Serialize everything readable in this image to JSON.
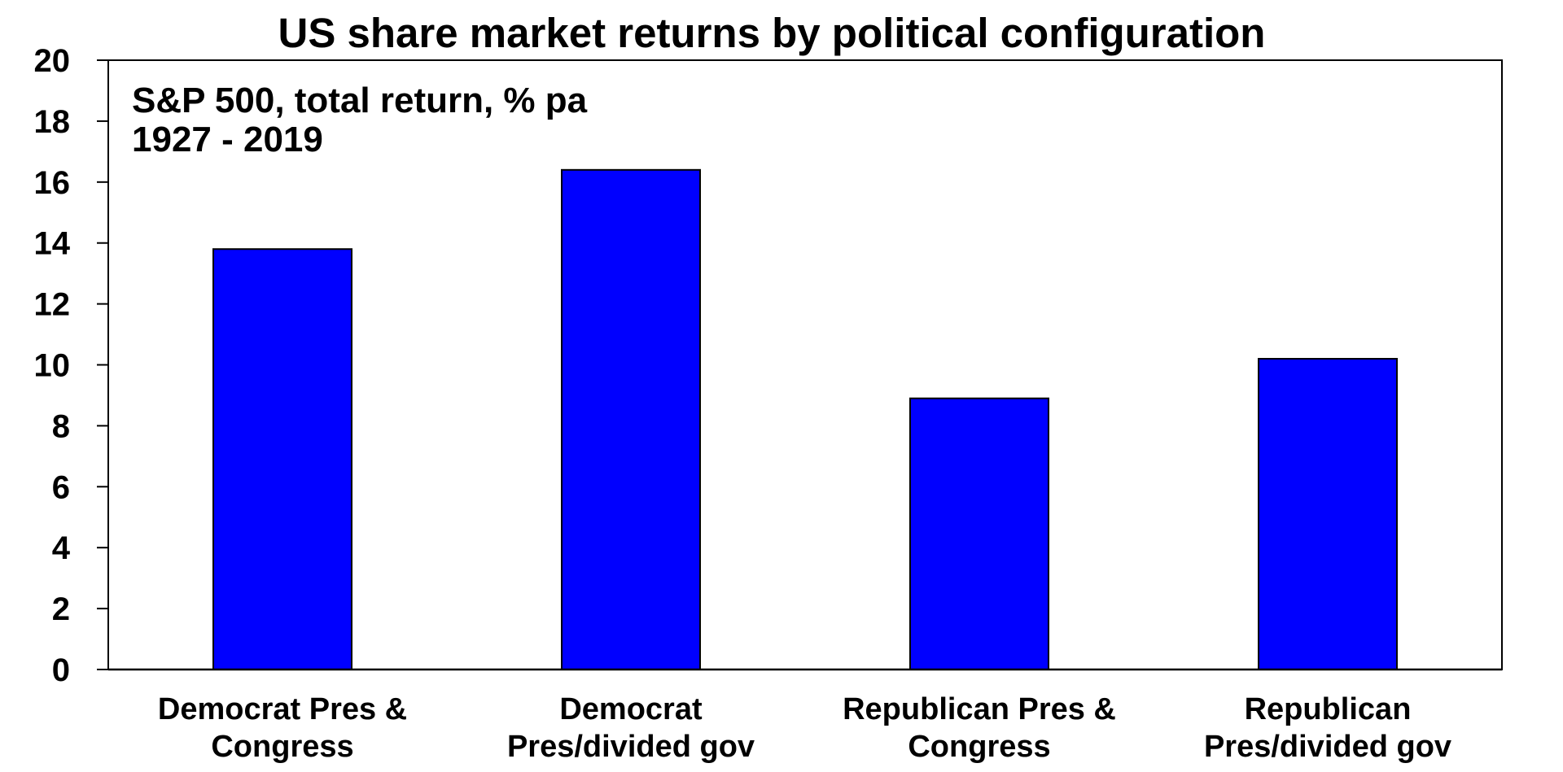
{
  "chart_data": {
    "type": "bar",
    "title": "US share market returns by political configuration",
    "annotation_lines": [
      "S&P 500, total return, % pa",
      "1927 - 2019"
    ],
    "categories": [
      [
        "Democrat Pres &",
        "Congress"
      ],
      [
        "Democrat",
        "Pres/divided gov"
      ],
      [
        "Republican Pres &",
        "Congress"
      ],
      [
        "Republican",
        "Pres/divided gov"
      ]
    ],
    "values": [
      13.8,
      16.4,
      8.9,
      10.2
    ],
    "bar_color": "#0000ff",
    "ylim": [
      0,
      20
    ],
    "yticks": [
      0,
      2,
      4,
      6,
      8,
      10,
      12,
      14,
      16,
      18,
      20
    ],
    "grid": false,
    "legend": false,
    "xlabel": "",
    "ylabel": ""
  }
}
